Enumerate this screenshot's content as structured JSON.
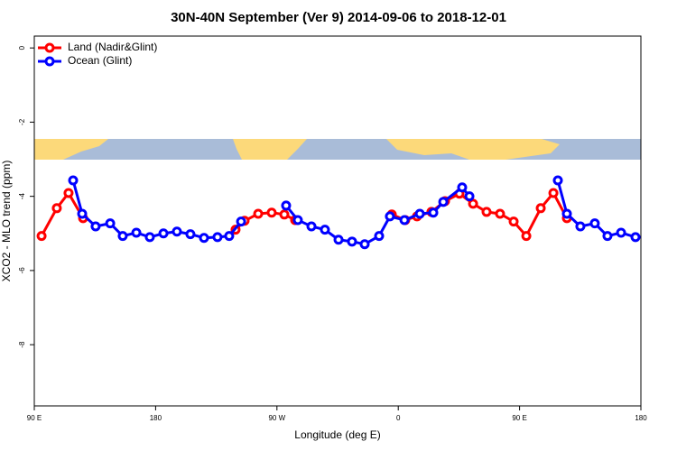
{
  "chart_data": {
    "type": "line",
    "title": "30N-40N September (Ver 9)   2014-09-06 to 2018-12-01",
    "x_label": "Longitude (deg E)",
    "y_label": "XCO2 - MLO trend (ppm)",
    "xlim": [
      90,
      540
    ],
    "xticks": [
      {
        "value": 90,
        "label": "90 E"
      },
      {
        "value": 180,
        "label": "180"
      },
      {
        "value": 270,
        "label": "90 W"
      },
      {
        "value": 360,
        "label": "0"
      },
      {
        "value": 450,
        "label": "90 E"
      },
      {
        "value": 540,
        "label": "180"
      }
    ],
    "ylim": [
      -9.65,
      0.32
    ],
    "yticks": [
      0,
      -2,
      -4,
      -6,
      -8
    ],
    "legend": "top-left",
    "series": [
      {
        "name": "Land (Nadir&Glint)",
        "color": "#ff0000",
        "x": [
          95.4,
          106.7,
          115.4,
          126.2,
          null,
          239.3,
          246.0,
          256.1,
          266.1,
          275.5,
          283.5,
          null,
          355.2,
          365.2,
          373.9,
          384.6,
          394.7,
          405.4,
          415.5,
          425.5,
          435.5,
          445.6,
          455.0,
          465.7,
          475.1,
          485.1
        ],
        "values": [
          -5.07,
          -4.32,
          -3.91,
          -4.59,
          null,
          -4.9,
          -4.66,
          -4.47,
          -4.44,
          -4.49,
          -4.64,
          null,
          -4.49,
          -4.64,
          -4.54,
          -4.42,
          -4.13,
          -3.93,
          -4.2,
          -4.42,
          -4.47,
          -4.68,
          -5.07,
          -4.32,
          -3.91,
          -4.59
        ]
      },
      {
        "name": "Ocean (Glint)",
        "color": "#0000ff",
        "x": [
          118.8,
          125.5,
          135.5,
          146.3,
          155.6,
          165.7,
          175.7,
          185.8,
          195.8,
          205.8,
          215.9,
          225.9,
          234.6,
          243.4,
          null,
          276.8,
          285.5,
          295.6,
          305.6,
          315.7,
          325.7,
          335.1,
          345.8,
          353.8,
          364.6,
          376.0,
          386.0,
          393.4,
          407.4,
          412.8,
          null,
          478.4,
          485.1,
          495.1,
          505.8,
          515.2,
          525.3,
          536.0
        ],
        "values": [
          -3.57,
          -4.47,
          -4.81,
          -4.73,
          -5.07,
          -4.98,
          -5.1,
          -5.0,
          -4.95,
          -5.02,
          -5.12,
          -5.1,
          -5.07,
          -4.68,
          null,
          -4.25,
          -4.64,
          -4.81,
          -4.9,
          -5.17,
          -5.22,
          -5.29,
          -5.07,
          -4.54,
          -4.64,
          -4.47,
          -4.44,
          -4.15,
          -3.76,
          -4.0,
          null,
          -3.57,
          -4.47,
          -4.81,
          -4.73,
          -5.07,
          -4.98,
          -5.1
        ]
      }
    ]
  }
}
